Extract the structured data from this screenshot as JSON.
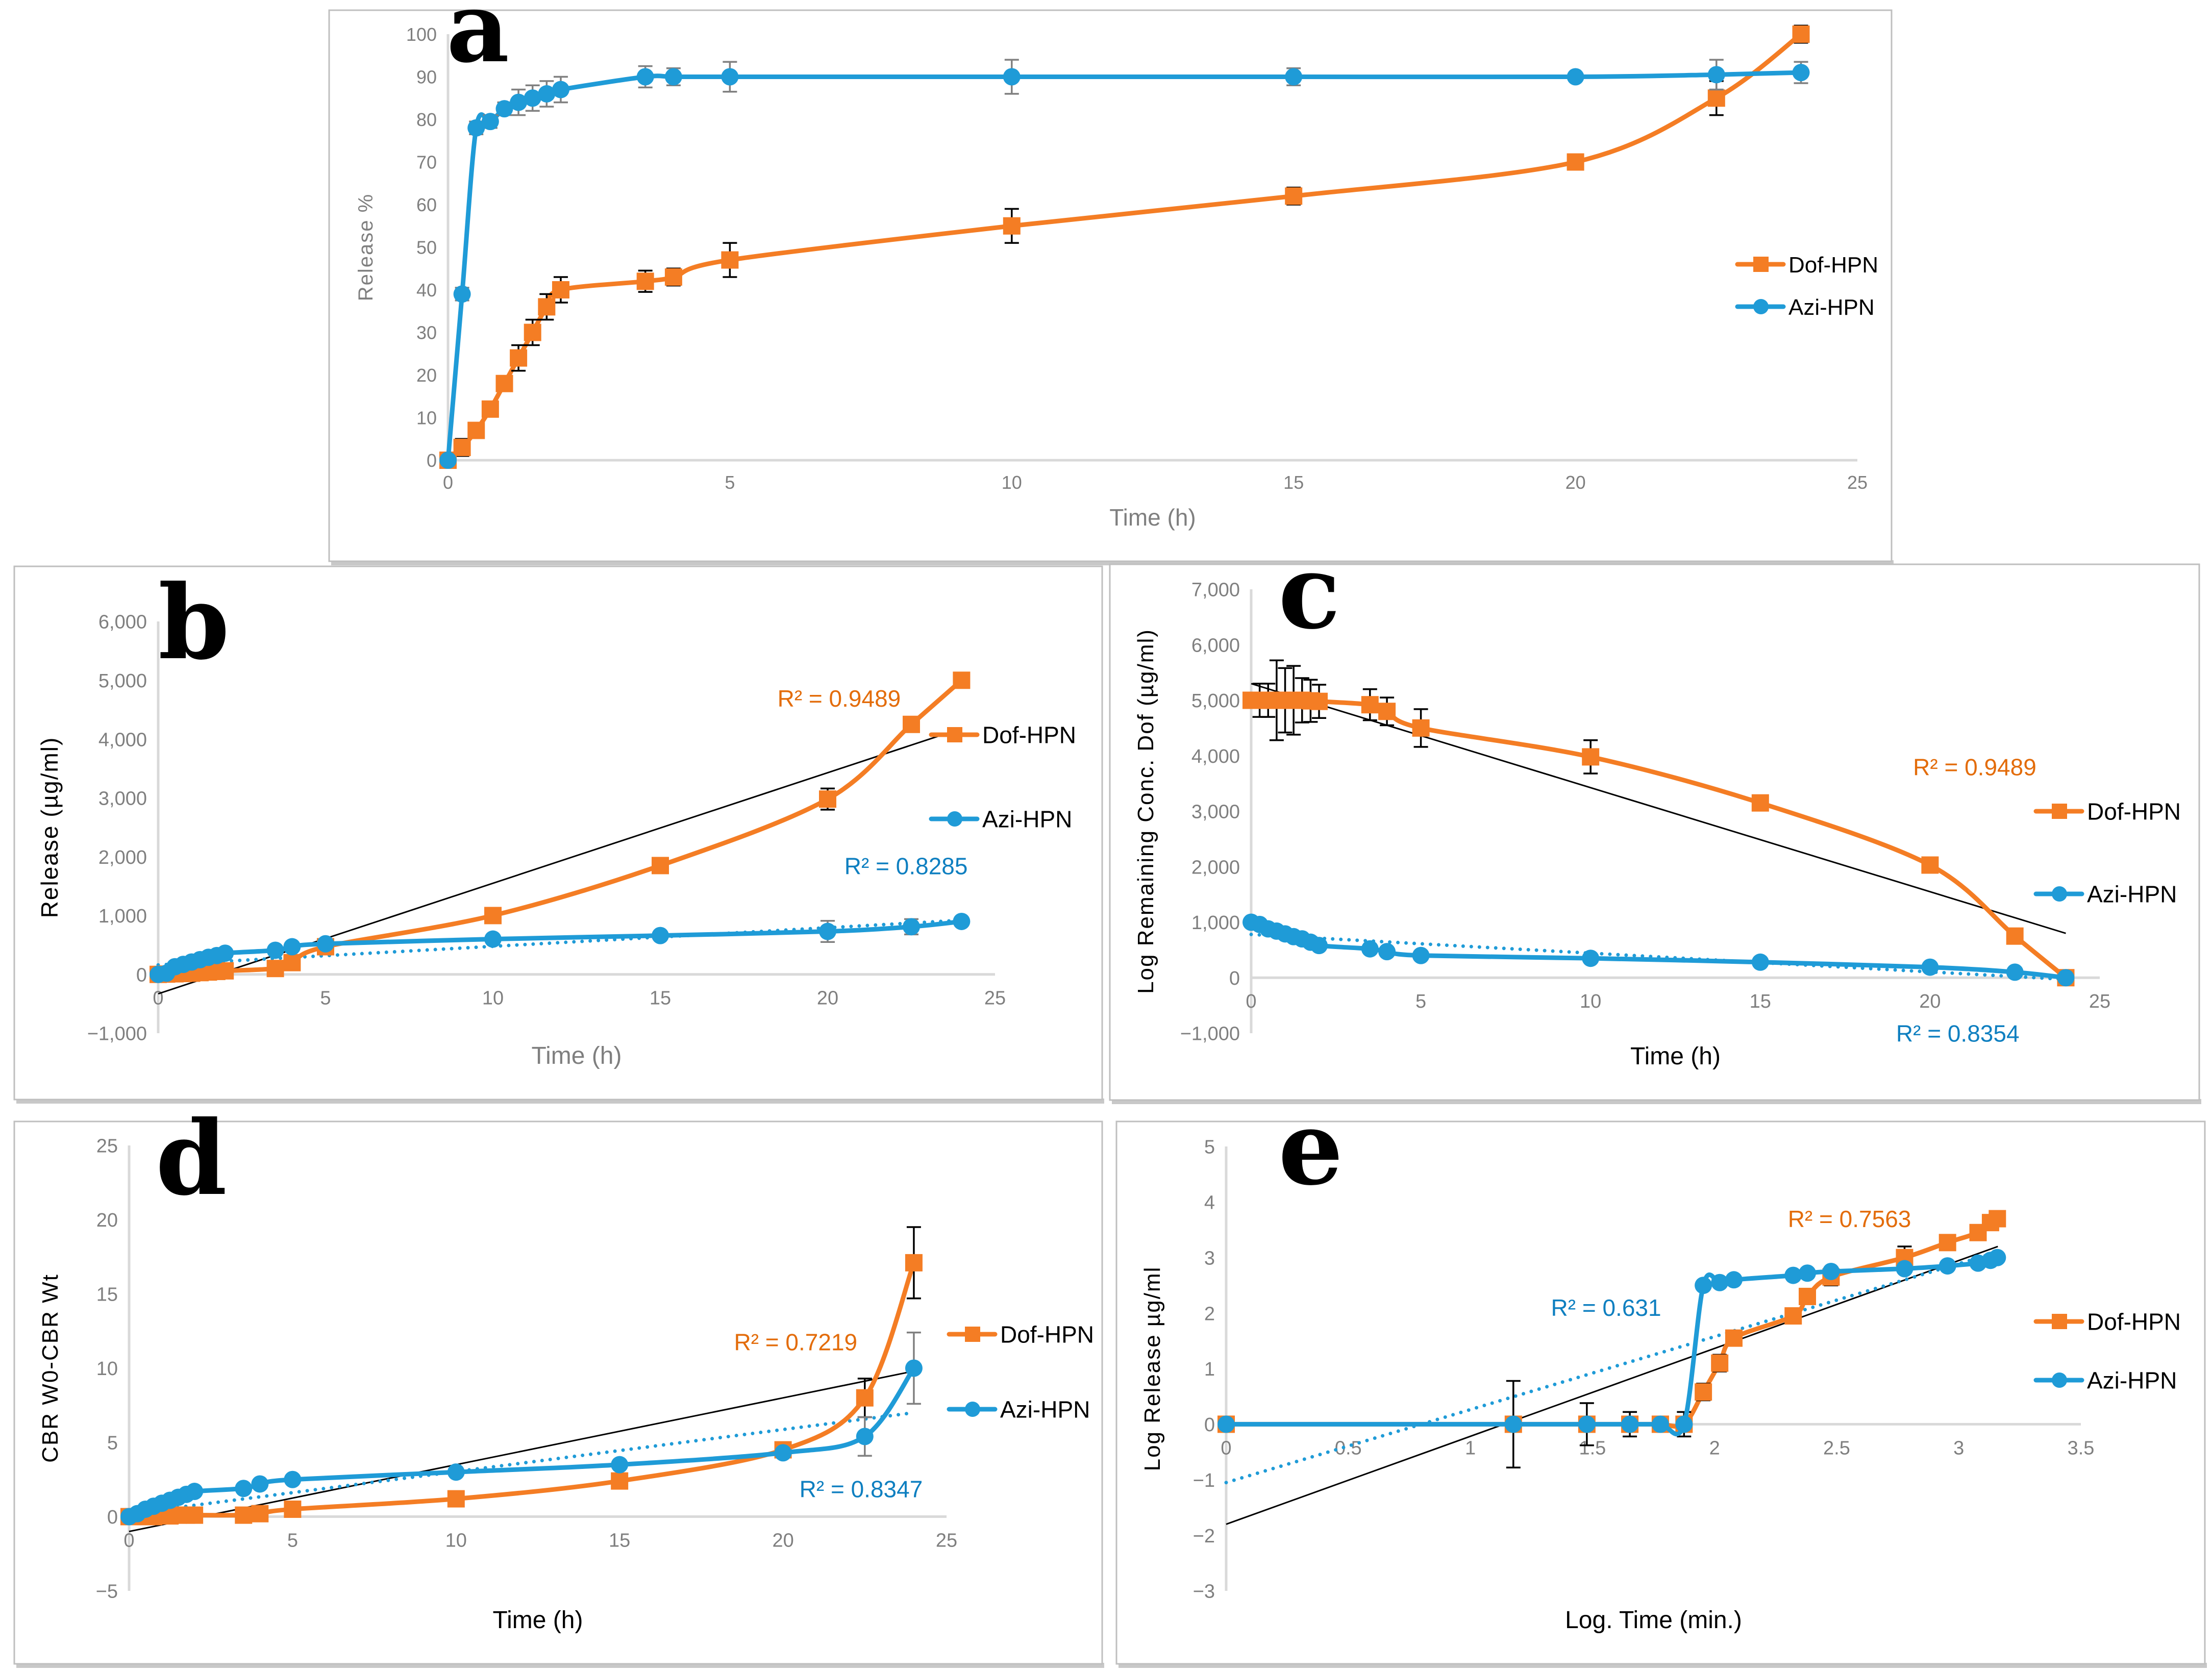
{
  "colors": {
    "dof": "#F47D24",
    "azi": "#1F9BD7",
    "r2_dof": "#E36C0A",
    "r2_azi": "#0E7FC0",
    "trend_dof": "#000000",
    "error_bar_dof": "#000000",
    "error_bar_azi": "#808080"
  },
  "legend": [
    "Dof-HPN",
    "Azi-HPN"
  ],
  "chart_data": [
    {
      "id": "a",
      "panel_letter": "a",
      "type": "line",
      "title": "",
      "xlabel": "Time (h)",
      "ylabel": "Release %",
      "xlim": [
        0,
        25
      ],
      "ylim": [
        0,
        100
      ],
      "xticks": [
        0,
        5,
        10,
        15,
        20,
        25
      ],
      "yticks": [
        0,
        10,
        20,
        30,
        40,
        50,
        60,
        70,
        80,
        90,
        100
      ],
      "tick_labels_x": [
        "0",
        "5",
        "10",
        "15",
        "20",
        "25"
      ],
      "tick_labels_y": [
        "0",
        "10",
        "20",
        "30",
        "40",
        "50",
        "60",
        "70",
        "80",
        "90",
        "100"
      ],
      "x": [
        0,
        0.25,
        0.5,
        0.75,
        1,
        1.25,
        1.5,
        1.75,
        2,
        3.5,
        4,
        5,
        10,
        15,
        20,
        22.5,
        24
      ],
      "series": [
        {
          "name": "Dof-HPN",
          "marker": "square",
          "values": [
            0,
            3,
            7,
            12,
            18,
            24,
            30,
            36,
            40,
            42,
            43,
            47,
            55,
            62,
            70,
            85,
            100
          ],
          "errors": [
            0,
            2,
            1.5,
            1.5,
            1,
            3,
            3,
            3,
            3,
            2.5,
            2,
            4,
            4,
            2,
            0,
            4,
            2
          ]
        },
        {
          "name": "Azi-HPN",
          "marker": "circle",
          "values": [
            0,
            39,
            78,
            79.5,
            82.5,
            84,
            85,
            86,
            87,
            90,
            90,
            90,
            90,
            90,
            90,
            90.5,
            91
          ],
          "errors": [
            0,
            1.5,
            1.5,
            1.5,
            1.5,
            3,
            3,
            3,
            3,
            2.5,
            2,
            3.5,
            4,
            2,
            0.5,
            3.5,
            2.5
          ]
        }
      ],
      "trendlines": [],
      "legend_position": "right",
      "grid": false
    },
    {
      "id": "b",
      "panel_letter": "b",
      "type": "line",
      "title": "",
      "xlabel": "Time (h)",
      "ylabel": "Release (µg/ml)",
      "xlim": [
        0,
        25
      ],
      "ylim": [
        -1000,
        6000
      ],
      "xticks": [
        0,
        5,
        10,
        15,
        20,
        25
      ],
      "yticks": [
        -1000,
        0,
        1000,
        2000,
        3000,
        4000,
        5000,
        6000
      ],
      "tick_labels_x": [
        "0",
        "5",
        "10",
        "15",
        "20",
        "25"
      ],
      "tick_labels_y": [
        "−1,000",
        "0",
        "1,000",
        "2,000",
        "3,000",
        "4,000",
        "5,000",
        "6,000"
      ],
      "x": [
        0,
        0.25,
        0.5,
        0.75,
        1,
        1.25,
        1.5,
        1.75,
        2,
        3.5,
        4,
        5,
        10,
        15,
        20,
        22.5,
        24
      ],
      "series": [
        {
          "name": "Dof-HPN",
          "marker": "square",
          "values": [
            0,
            5,
            10,
            15,
            20,
            30,
            40,
            50,
            60,
            100,
            200,
            470,
            1000,
            1850,
            2980,
            4250,
            5000
          ],
          "errors": [
            0,
            0,
            0,
            0,
            0,
            0,
            0,
            0,
            0,
            0,
            0,
            0,
            0,
            0,
            180,
            120,
            0
          ]
        },
        {
          "name": "Azi-HPN",
          "marker": "circle",
          "values": [
            0,
            20,
            130,
            170,
            210,
            250,
            290,
            320,
            360,
            410,
            470,
            520,
            600,
            660,
            730,
            810,
            900
          ],
          "errors": [
            0,
            0,
            0,
            0,
            0,
            0,
            0,
            0,
            0,
            0,
            0,
            0,
            0,
            0,
            180,
            130,
            0
          ]
        }
      ],
      "trendlines": [
        {
          "series": "Dof-HPN",
          "style": "solid",
          "from": [
            0,
            -330
          ],
          "to": [
            24,
            4180
          ],
          "r2_label": "R² = 0.9489",
          "r2_anchor": [
            18.5,
            4550
          ]
        },
        {
          "series": "Azi-HPN",
          "style": "dotted",
          "from": [
            0,
            160
          ],
          "to": [
            24,
            920
          ],
          "r2_label": "R² = 0.8285",
          "r2_anchor": [
            20.5,
            1700
          ]
        }
      ],
      "legend_position": "right",
      "grid": false
    },
    {
      "id": "c",
      "panel_letter": "c",
      "type": "line",
      "title": "",
      "xlabel": "Time (h)",
      "ylabel": "Log Remaining Conc. Dof (µg/ml)",
      "xlim": [
        0,
        25
      ],
      "ylim": [
        -1000,
        7000
      ],
      "xticks": [
        0,
        5,
        10,
        15,
        20,
        25
      ],
      "yticks": [
        -1000,
        0,
        1000,
        2000,
        3000,
        4000,
        5000,
        6000,
        7000
      ],
      "tick_labels_x": [
        "0",
        "5",
        "10",
        "15",
        "20",
        "25"
      ],
      "tick_labels_y": [
        "−1,000",
        "0",
        "1,000",
        "2,000",
        "3,000",
        "4,000",
        "5,000",
        "6,000",
        "7,000"
      ],
      "x": [
        0,
        0.25,
        0.5,
        0.75,
        1,
        1.25,
        1.5,
        1.75,
        2,
        3.5,
        4,
        5,
        10,
        15,
        20,
        22.5,
        24
      ],
      "series": [
        {
          "name": "Dof-HPN",
          "marker": "square",
          "values": [
            5000,
            5000,
            5000,
            5000,
            5000,
            5000,
            5000,
            4990,
            4980,
            4920,
            4800,
            4500,
            3980,
            3150,
            2030,
            750,
            0
          ],
          "errors": [
            0,
            300,
            300,
            720,
            580,
            620,
            400,
            380,
            300,
            280,
            250,
            340,
            300,
            0,
            0,
            0,
            0
          ]
        },
        {
          "name": "Azi-HPN",
          "marker": "circle",
          "values": [
            1000,
            960,
            880,
            840,
            790,
            740,
            700,
            640,
            580,
            520,
            470,
            400,
            350,
            280,
            190,
            100,
            0
          ],
          "errors": [
            0,
            0,
            0,
            0,
            0,
            0,
            0,
            0,
            0,
            0,
            0,
            0,
            0,
            0,
            0,
            0,
            0
          ]
        }
      ],
      "trendlines": [
        {
          "series": "Dof-HPN",
          "style": "solid",
          "from": [
            0,
            5300
          ],
          "to": [
            24,
            800
          ],
          "r2_label": "R² = 0.9489",
          "r2_anchor": [
            19.5,
            3650
          ]
        },
        {
          "series": "Azi-HPN",
          "style": "dotted",
          "from": [
            0,
            780
          ],
          "to": [
            24,
            -30
          ],
          "r2_label": "R² = 0.8354",
          "r2_anchor": [
            19,
            -1150
          ]
        }
      ],
      "legend_position": "right",
      "grid": false
    },
    {
      "id": "d",
      "panel_letter": "d",
      "type": "line",
      "title": "",
      "xlabel": "Time (h)",
      "ylabel": "CBR W0-CBR Wt",
      "xlim": [
        0,
        25
      ],
      "ylim": [
        -5,
        25
      ],
      "xticks": [
        0,
        5,
        10,
        15,
        20,
        25
      ],
      "yticks": [
        -5,
        0,
        5,
        10,
        15,
        20,
        25
      ],
      "tick_labels_x": [
        "0",
        "5",
        "10",
        "15",
        "20",
        "25"
      ],
      "tick_labels_y": [
        "−5",
        "0",
        "5",
        "10",
        "15",
        "20",
        "25"
      ],
      "x": [
        0,
        0.25,
        0.5,
        0.75,
        1,
        1.25,
        1.5,
        1.75,
        2,
        3.5,
        4,
        5,
        10,
        15,
        20,
        22.5,
        24
      ],
      "series": [
        {
          "name": "Dof-HPN",
          "marker": "square",
          "values": [
            0,
            0,
            0,
            0,
            0.05,
            0.05,
            0.1,
            0.1,
            0.1,
            0.1,
            0.2,
            0.5,
            1.2,
            2.4,
            4.5,
            8,
            17.1
          ],
          "errors": [
            0,
            0,
            0,
            0,
            0,
            0,
            0,
            0,
            0,
            0,
            0,
            0,
            0,
            0,
            0,
            1.3,
            2.4
          ]
        },
        {
          "name": "Azi-HPN",
          "marker": "circle",
          "values": [
            0,
            0.2,
            0.5,
            0.7,
            0.9,
            1.1,
            1.3,
            1.5,
            1.7,
            1.9,
            2.2,
            2.5,
            3.0,
            3.5,
            4.3,
            5.4,
            10
          ],
          "errors": [
            0,
            0,
            0,
            0,
            0,
            0,
            0,
            0,
            0,
            0,
            0,
            0,
            0,
            0,
            0,
            1.3,
            2.4
          ]
        }
      ],
      "trendlines": [
        {
          "series": "Dof-HPN",
          "style": "solid",
          "from": [
            0,
            -1.0
          ],
          "to": [
            24,
            9.8
          ],
          "r2_label": "R² = 0.7219",
          "r2_anchor": [
            18.5,
            11.2
          ]
        },
        {
          "series": "Azi-HPN",
          "style": "dotted",
          "from": [
            0,
            0.2
          ],
          "to": [
            24,
            7.0
          ],
          "r2_label": "R² = 0.8347",
          "r2_anchor": [
            20.5,
            1.3
          ]
        }
      ],
      "legend_position": "right",
      "grid": false
    },
    {
      "id": "e",
      "panel_letter": "e",
      "type": "line",
      "title": "",
      "xlabel": "Log. Time (min.)",
      "ylabel": "Log Release µg/ml",
      "xlim": [
        0,
        3.5
      ],
      "ylim": [
        -3,
        5
      ],
      "xticks": [
        0,
        0.5,
        1,
        1.5,
        2,
        2.5,
        3,
        3.5
      ],
      "yticks": [
        -3,
        -2,
        -1,
        0,
        1,
        2,
        3,
        4,
        5
      ],
      "tick_labels_x": [
        "0",
        "0.5",
        "1",
        "1.5",
        "2",
        "2.5",
        "3",
        "3.5"
      ],
      "tick_labels_y": [
        "−3",
        "−2",
        "−1",
        "0",
        "1",
        "2",
        "3",
        "4",
        "5"
      ],
      "x": [
        0,
        1.176,
        1.477,
        1.653,
        1.778,
        1.875,
        1.954,
        2.021,
        2.079,
        2.322,
        2.38,
        2.477,
        2.778,
        2.954,
        3.079,
        3.13,
        3.158
      ],
      "series": [
        {
          "name": "Dof-HPN",
          "marker": "square",
          "values": [
            0,
            0,
            0,
            0,
            0,
            0,
            0.58,
            1.1,
            1.55,
            1.95,
            2.3,
            2.65,
            3.0,
            3.27,
            3.45,
            3.63,
            3.7
          ],
          "errors": [
            0,
            0.78,
            0.38,
            0.22,
            0.12,
            0.22,
            0.15,
            0.15,
            0.08,
            0.1,
            0,
            0.15,
            0.2,
            0,
            0,
            0.05,
            0
          ]
        },
        {
          "name": "Azi-HPN",
          "marker": "circle",
          "values": [
            0,
            0,
            0,
            0,
            0,
            0,
            2.5,
            2.55,
            2.6,
            2.68,
            2.72,
            2.75,
            2.8,
            2.85,
            2.9,
            2.95,
            3.0
          ],
          "errors": [
            0,
            0,
            0,
            0,
            0,
            0,
            0,
            0,
            0,
            0,
            0,
            0,
            0,
            0,
            0,
            0,
            0
          ]
        }
      ],
      "trendlines": [
        {
          "series": "Dof-HPN",
          "style": "solid",
          "from": [
            0,
            -1.8
          ],
          "to": [
            3.16,
            3.2
          ],
          "r2_label": "R² = 0.7563",
          "r2_anchor": [
            2.3,
            3.55
          ]
        },
        {
          "series": "Azi-HPN",
          "style": "dotted",
          "from": [
            0,
            -1.05
          ],
          "to": [
            3.16,
            3.1
          ],
          "r2_label": "R² = 0.631",
          "r2_anchor": [
            1.33,
            1.95
          ]
        }
      ],
      "legend_position": "right",
      "grid": false
    }
  ]
}
